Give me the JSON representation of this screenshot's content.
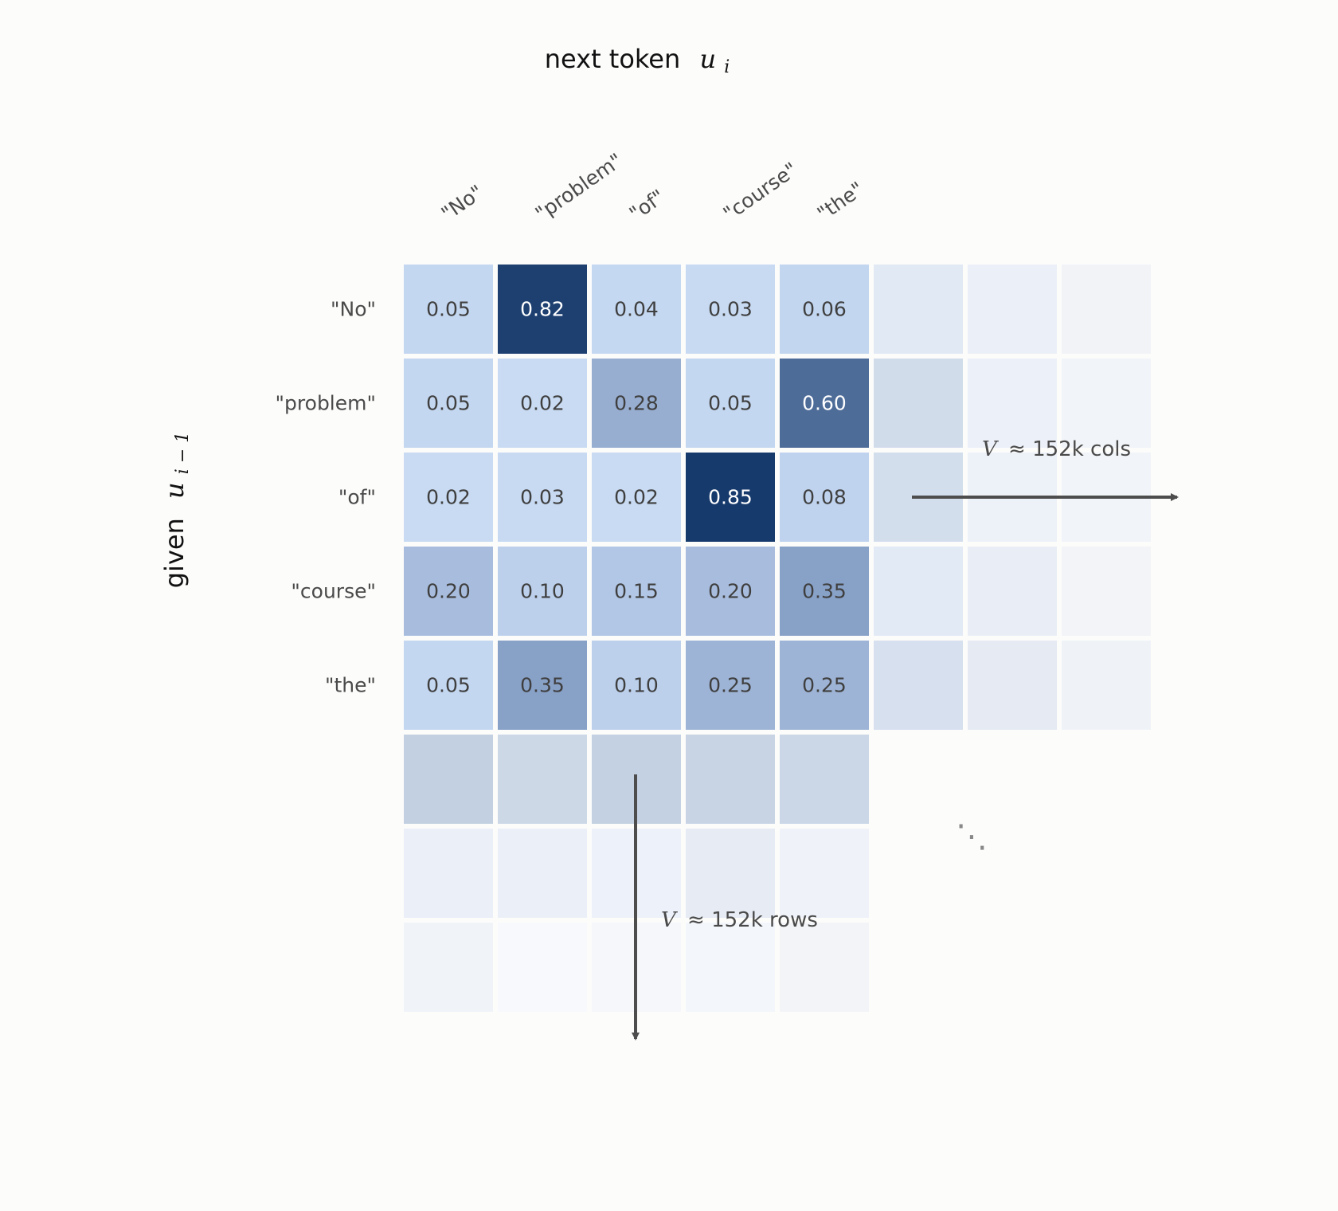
{
  "chart_data": {
    "type": "heatmap",
    "title": "next token",
    "title_math": "u",
    "title_math_sub": "i",
    "ylabel": "given",
    "ylabel_math": "u",
    "ylabel_math_sub": "i − 1",
    "columns": [
      "\"No\"",
      "\"problem\"",
      "\"of\"",
      "\"course\"",
      "\"the\""
    ],
    "rows": [
      "\"No\"",
      "\"problem\"",
      "\"of\"",
      "\"course\"",
      "\"the\""
    ],
    "values": [
      [
        0.05,
        0.82,
        0.04,
        0.03,
        0.06
      ],
      [
        0.05,
        0.02,
        0.28,
        0.05,
        0.6
      ],
      [
        0.02,
        0.03,
        0.02,
        0.85,
        0.08
      ],
      [
        0.2,
        0.1,
        0.15,
        0.2,
        0.35
      ],
      [
        0.05,
        0.35,
        0.1,
        0.25,
        0.25
      ]
    ],
    "value_labels": [
      [
        "0.05",
        "0.82",
        "0.04",
        "0.03",
        "0.06"
      ],
      [
        "0.05",
        "0.02",
        "0.28",
        "0.05",
        "0.60"
      ],
      [
        "0.02",
        "0.03",
        "0.02",
        "0.85",
        "0.08"
      ],
      [
        "0.20",
        "0.10",
        "0.15",
        "0.20",
        "0.35"
      ],
      [
        "0.05",
        "0.35",
        "0.10",
        "0.25",
        "0.25"
      ]
    ],
    "colormap": "Blues",
    "faded_extra_columns": 3,
    "faded_extra_rows": 3,
    "annotations": {
      "cols_label": "≈ 152k cols",
      "rows_label": "≈ 152k rows",
      "var": "V",
      "ellipsis": "⋱"
    }
  }
}
